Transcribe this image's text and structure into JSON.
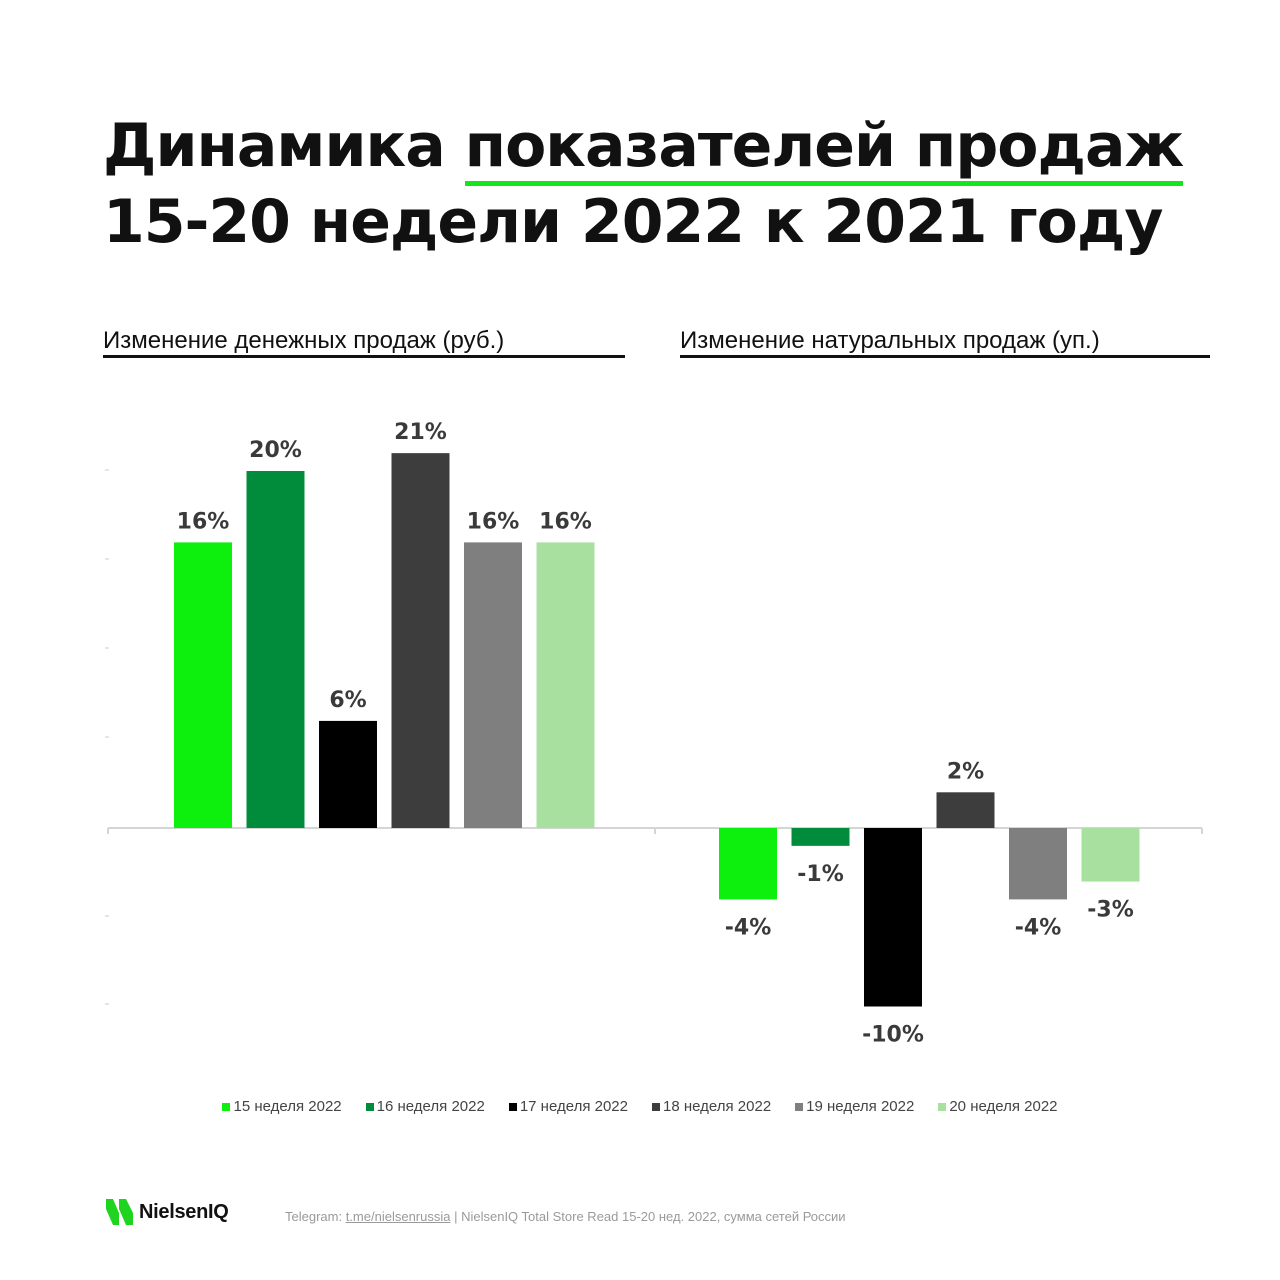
{
  "title": {
    "line1_pre": "Динамика ",
    "line1_highlight": "показателей продаж",
    "line2": "15-20 недели 2022 к 2021 году"
  },
  "subtitles": {
    "left": "Изменение денежных продаж (руб.)",
    "right": "Изменение натуральных продаж (уп.)"
  },
  "colors": {
    "accent_underline": "#15e51b",
    "text": "#111111"
  },
  "chart_data": [
    {
      "type": "bar",
      "title": "Изменение денежных продаж (руб.)",
      "categories": [
        "15 неделя 2022",
        "16 неделя 2022",
        "17 неделя 2022",
        "18 неделя 2022",
        "19 неделя 2022",
        "20 неделя 2022"
      ],
      "values": [
        16,
        20,
        6,
        21,
        16,
        16
      ],
      "labels": [
        "16%",
        "20%",
        "6%",
        "21%",
        "16%",
        "16%"
      ],
      "colors": [
        "#0df00d",
        "#008c3a",
        "#000000",
        "#3d3d3d",
        "#7f7f7f",
        "#a8e0a0"
      ],
      "ylim": [
        -10,
        21
      ]
    },
    {
      "type": "bar",
      "title": "Изменение натуральных продаж (уп.)",
      "categories": [
        "15 неделя 2022",
        "16 неделя 2022",
        "17 неделя 2022",
        "18 неделя 2022",
        "19 неделя 2022",
        "20 неделя 2022"
      ],
      "values": [
        -4,
        -1,
        -10,
        2,
        -4,
        -3
      ],
      "labels": [
        "-4%",
        "-1%",
        "-10%",
        "2%",
        "-4%",
        "-3%"
      ],
      "colors": [
        "#0df00d",
        "#008c3a",
        "#000000",
        "#3d3d3d",
        "#7f7f7f",
        "#a8e0a0"
      ],
      "ylim": [
        -10,
        21
      ]
    }
  ],
  "legend": [
    {
      "label": "15 неделя 2022",
      "color": "#0df00d"
    },
    {
      "label": "16 неделя 2022",
      "color": "#008c3a"
    },
    {
      "label": "17 неделя 2022",
      "color": "#000000"
    },
    {
      "label": "18 неделя 2022",
      "color": "#3d3d3d"
    },
    {
      "label": "19 неделя 2022",
      "color": "#7f7f7f"
    },
    {
      "label": "20 неделя 2022",
      "color": "#a8e0a0"
    }
  ],
  "footer": {
    "logo_text": "NielsenIQ",
    "telegram_prefix": "Telegram: ",
    "telegram_link": "t.me/nielsenrussia",
    "separator": " | ",
    "source": " NielsenIQ Total Store Read 15-20 нед. 2022, сумма сетей России"
  }
}
